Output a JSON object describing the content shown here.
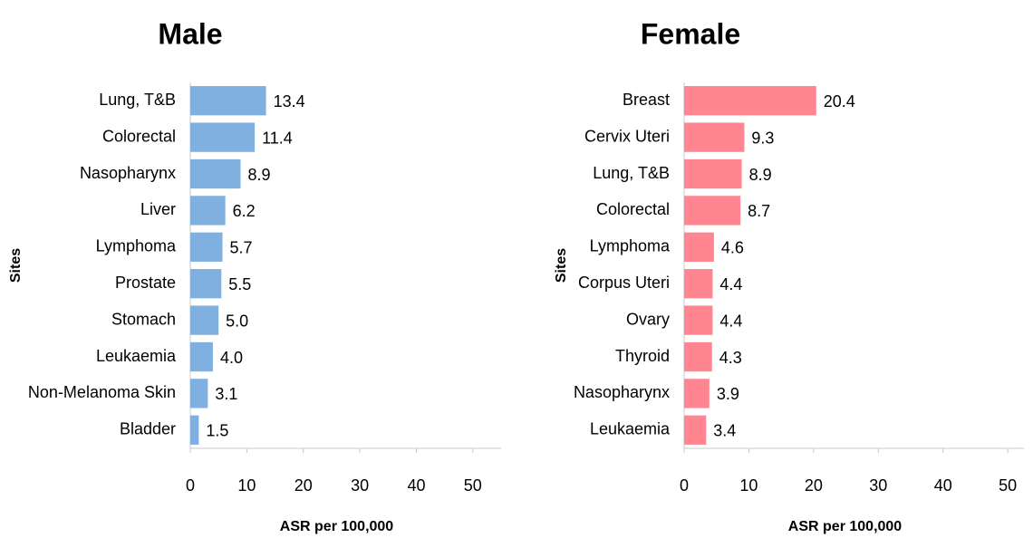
{
  "chart_data": [
    {
      "type": "bar",
      "orientation": "horizontal",
      "title": "Male",
      "ylabel": "Sites",
      "xlabel": "ASR per 100,000",
      "categories": [
        "Lung, T&B",
        "Colorectal",
        "Nasopharynx",
        "Liver",
        "Lymphoma",
        "Prostate",
        "Stomach",
        "Leukaemia",
        "Non-Melanoma Skin",
        "Bladder"
      ],
      "values": [
        13.4,
        11.4,
        8.9,
        6.2,
        5.7,
        5.5,
        5.0,
        4.0,
        3.1,
        1.5
      ],
      "value_labels": [
        "13.4",
        "11.4",
        "8.9",
        "6.2",
        "5.7",
        "5.5",
        "5.0",
        "4.0",
        "3.1",
        "1.5"
      ],
      "color": "#7fb0e0",
      "xlim": [
        0,
        55
      ],
      "xticks": [
        0,
        10,
        20,
        30,
        40,
        50
      ]
    },
    {
      "type": "bar",
      "orientation": "horizontal",
      "title": "Female",
      "ylabel": "Sites",
      "xlabel": "ASR per 100,000",
      "categories": [
        "Breast",
        "Cervix Uteri",
        "Lung, T&B",
        "Colorectal",
        "Lymphoma",
        "Corpus Uteri",
        "Ovary",
        "Thyroid",
        "Nasopharynx",
        "Leukaemia"
      ],
      "values": [
        20.4,
        9.3,
        8.9,
        8.7,
        4.6,
        4.4,
        4.4,
        4.3,
        3.9,
        3.4
      ],
      "value_labels": [
        "20.4",
        "9.3",
        "8.9",
        "8.7",
        "4.6",
        "4.4",
        "4.4",
        "4.3",
        "3.9",
        "3.4"
      ],
      "color": "#ff8690",
      "xlim": [
        0,
        52.5
      ],
      "xticks": [
        0,
        10,
        20,
        30,
        40,
        50
      ]
    }
  ]
}
